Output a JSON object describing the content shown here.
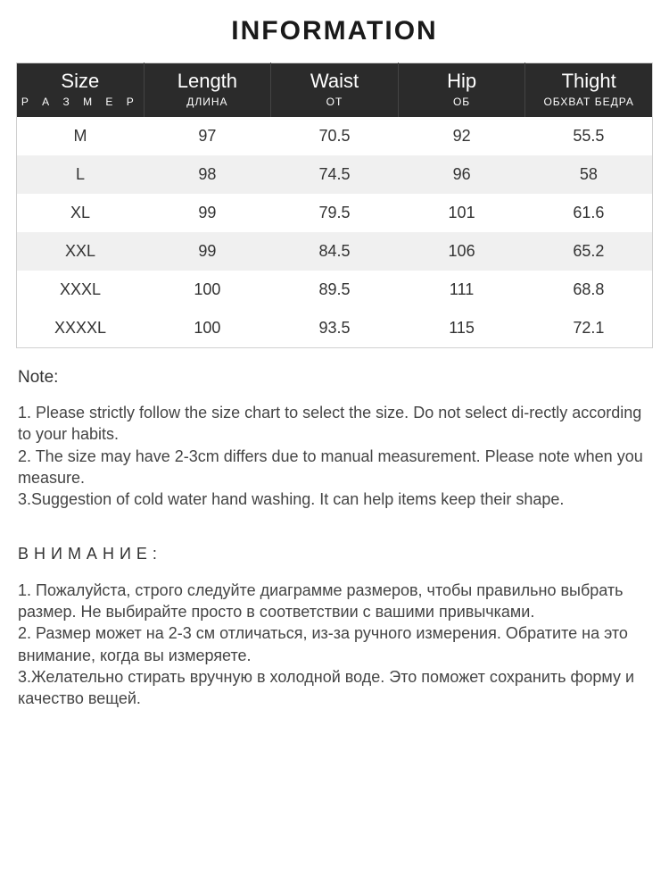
{
  "title": "INFORMATION",
  "table": {
    "header_bg": "#2b2b2b",
    "header_fg": "#ffffff",
    "row_alt_bg": "#f0f0f0",
    "border_color": "#d0d0d0",
    "columns": [
      {
        "main": "Size",
        "sub": "Р А З М Е Р",
        "sub_spread": true
      },
      {
        "main": "Length",
        "sub": "ДЛИНА",
        "sub_spread": false
      },
      {
        "main": "Waist",
        "sub": "ОТ",
        "sub_spread": false
      },
      {
        "main": "Hip",
        "sub": "ОБ",
        "sub_spread": false
      },
      {
        "main": "Thight",
        "sub": "ОБХВАТ БЕДРА",
        "sub_spread": false
      }
    ],
    "rows": [
      [
        "M",
        "97",
        "70.5",
        "92",
        "55.5"
      ],
      [
        "L",
        "98",
        "74.5",
        "96",
        "58"
      ],
      [
        "XL",
        "99",
        "79.5",
        "101",
        "61.6"
      ],
      [
        "XXL",
        "99",
        "84.5",
        "106",
        "65.2"
      ],
      [
        "XXXL",
        "100",
        "89.5",
        "111",
        "68.8"
      ],
      [
        "XXXXL",
        "100",
        "93.5",
        "115",
        "72.1"
      ]
    ]
  },
  "note_en": {
    "title": "Note:",
    "lines": [
      "1. Please strictly follow the size chart  to select the size. Do not select di-rectly according to your habits.",
      "2. The size may have 2-3cm differs due to manual measurement. Please note when you measure.",
      "3.Suggestion of cold water hand washing. It can help items keep their shape."
    ]
  },
  "note_ru": {
    "title": "ВНИМАНИЕ:",
    "lines": [
      "1. Пожалуйста, строго следуйте диаграмме размеров, чтобы правильно выбрать размер. Не выбирайте просто в соответствии с вашими привычками.",
      "2. Размер может на 2-3 см отличаться, из-за ручного измерения. Обратите на это внимание, когда вы измеряете.",
      "3.Желательно стирать вручную в холодной воде. Это поможет сохранить форму и качество вещей."
    ]
  }
}
